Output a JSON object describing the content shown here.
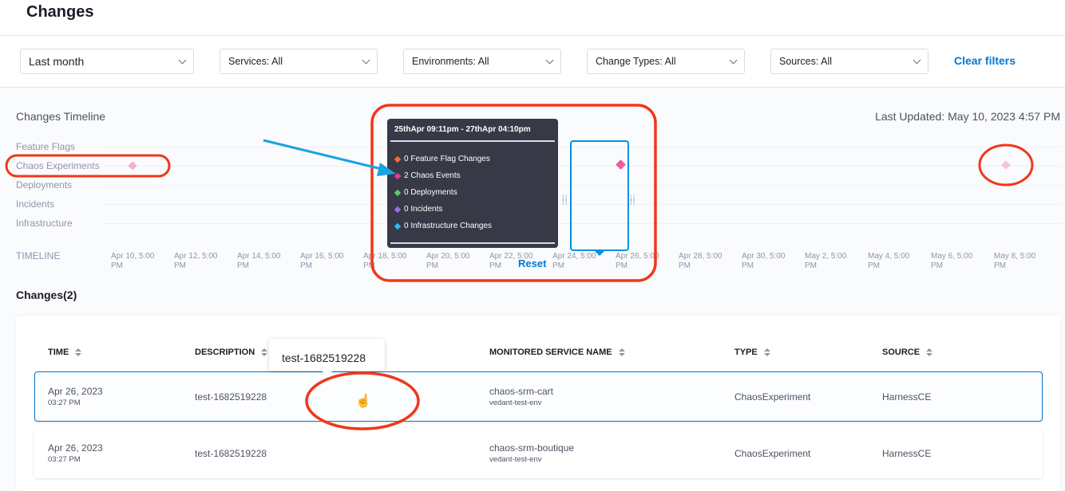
{
  "page": {
    "title": "Changes"
  },
  "filters": {
    "time": "Last month",
    "services": "Services: All",
    "environments": "Environments: All",
    "change_types": "Change Types: All",
    "sources": "Sources: All",
    "clear": "Clear filters"
  },
  "timeline": {
    "title": "Changes Timeline",
    "last_updated": "Last Updated: May 10, 2023 4:57 PM",
    "rows": [
      "Feature Flags",
      "Chaos Experiments",
      "Deployments",
      "Incidents",
      "Infrastructure"
    ],
    "axis_label": "TIMELINE",
    "ticks": [
      "Apr 10, 5:00 PM",
      "Apr 12, 5:00 PM",
      "Apr 14, 5:00 PM",
      "Apr 16, 5:00 PM",
      "Apr 18, 5:00 PM",
      "Apr 20, 5:00 PM",
      "Apr 22, 5:00 PM",
      "Apr 24, 5:00 PM",
      "Apr 26, 5:00 PM",
      "Apr 28, 5:00 PM",
      "Apr 30, 5:00 PM",
      "May 2, 5:00 PM",
      "May 4, 5:00 PM",
      "May 6, 5:00 PM",
      "May 8, 5:00 PM"
    ],
    "reset": "Reset",
    "tooltip": {
      "header": "25thApr 09:11pm - 27thApr 04:10pm",
      "items": [
        {
          "label": "0 Feature Flag Changes",
          "color": "#ff6a2e"
        },
        {
          "label": "2 Chaos Events",
          "color": "#e43c8c"
        },
        {
          "label": "0 Deployments",
          "color": "#5fc66b"
        },
        {
          "label": "0 Incidents",
          "color": "#9c6cf0"
        },
        {
          "label": "0 Infrastructure Changes",
          "color": "#2eb8f0"
        }
      ]
    },
    "marker_color": "#f05a9c"
  },
  "changes": {
    "heading": "Changes(2)",
    "columns": [
      "TIME",
      "DESCRIPTION",
      "MONITORED SERVICE NAME",
      "TYPE",
      "SOURCE"
    ],
    "hover_tooltip": "test-1682519228",
    "rows": [
      {
        "date": "Apr 26, 2023",
        "time": "03:27 PM",
        "description": "test-1682519228",
        "service": "chaos-srm-cart",
        "env": "vedant-test-env",
        "type": "ChaosExperiment",
        "source": "HarnessCE"
      },
      {
        "date": "Apr 26, 2023",
        "time": "03:27 PM",
        "description": "test-1682519228",
        "service": "chaos-srm-boutique",
        "env": "vedant-test-env",
        "type": "ChaosExperiment",
        "source": "HarnessCE"
      }
    ]
  }
}
